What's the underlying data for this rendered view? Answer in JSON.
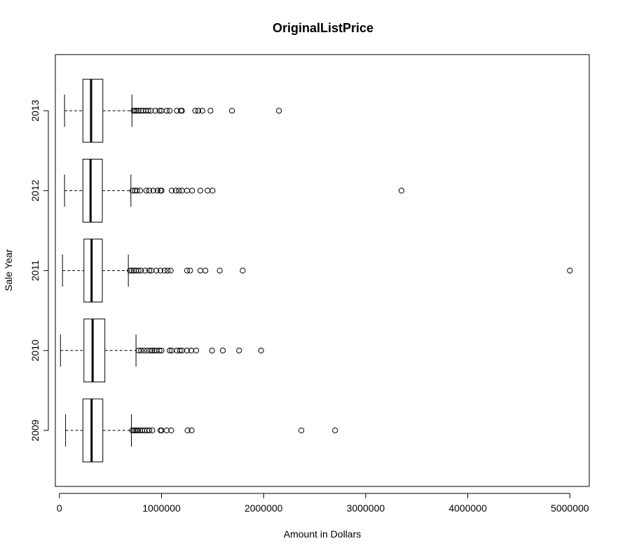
{
  "chart_data": {
    "type": "boxplot",
    "orientation": "horizontal",
    "title": "OriginalListPrice",
    "xlabel": "Amount in Dollars",
    "ylabel": "Sale Year",
    "xlim": [
      -40000,
      5190000
    ],
    "x_ticks": [
      0,
      1000000,
      2000000,
      3000000,
      4000000,
      5000000
    ],
    "x_tick_labels": [
      "0",
      "1000000",
      "2000000",
      "3000000",
      "4000000",
      "5000000"
    ],
    "categories": [
      "2009",
      "2010",
      "2011",
      "2012",
      "2013"
    ],
    "grid": false,
    "boxes": [
      {
        "category": "2009",
        "whisker_low": 60000,
        "q1": 230000,
        "median": 315000,
        "q3": 425000,
        "whisker_high": 705000,
        "outliers": [
          712000,
          725000,
          740000,
          755000,
          770000,
          790000,
          810000,
          835000,
          860000,
          880000,
          910000,
          990000,
          1000000,
          1050000,
          1095000,
          1255000,
          1295000,
          2370000,
          2700000
        ]
      },
      {
        "category": "2010",
        "whisker_low": 10000,
        "q1": 240000,
        "median": 325000,
        "q3": 445000,
        "whisker_high": 750000,
        "outliers": [
          775000,
          800000,
          830000,
          860000,
          890000,
          910000,
          930000,
          950000,
          980000,
          1000000,
          1080000,
          1100000,
          1150000,
          1180000,
          1200000,
          1250000,
          1290000,
          1340000,
          1495000,
          1600000,
          1760000,
          1975000
        ]
      },
      {
        "category": "2011",
        "whisker_low": 30000,
        "q1": 240000,
        "median": 315000,
        "q3": 420000,
        "whisker_high": 675000,
        "outliers": [
          690000,
          710000,
          730000,
          750000,
          775000,
          800000,
          840000,
          880000,
          900000,
          950000,
          990000,
          1030000,
          1060000,
          1090000,
          1250000,
          1280000,
          1380000,
          1430000,
          1570000,
          1795000,
          5000000
        ]
      },
      {
        "category": "2012",
        "whisker_low": 50000,
        "q1": 230000,
        "median": 305000,
        "q3": 420000,
        "whisker_high": 700000,
        "outliers": [
          715000,
          740000,
          760000,
          790000,
          850000,
          880000,
          920000,
          960000,
          990000,
          1000000,
          1100000,
          1140000,
          1170000,
          1200000,
          1250000,
          1300000,
          1380000,
          1450000,
          1500000,
          3350000
        ]
      },
      {
        "category": "2013",
        "whisker_low": 50000,
        "q1": 230000,
        "median": 310000,
        "q3": 425000,
        "whisker_high": 710000,
        "outliers": [
          725000,
          740000,
          755000,
          775000,
          800000,
          820000,
          845000,
          870000,
          895000,
          940000,
          980000,
          1000000,
          1050000,
          1080000,
          1150000,
          1190000,
          1200000,
          1330000,
          1360000,
          1400000,
          1480000,
          1690000,
          2150000
        ]
      }
    ]
  }
}
